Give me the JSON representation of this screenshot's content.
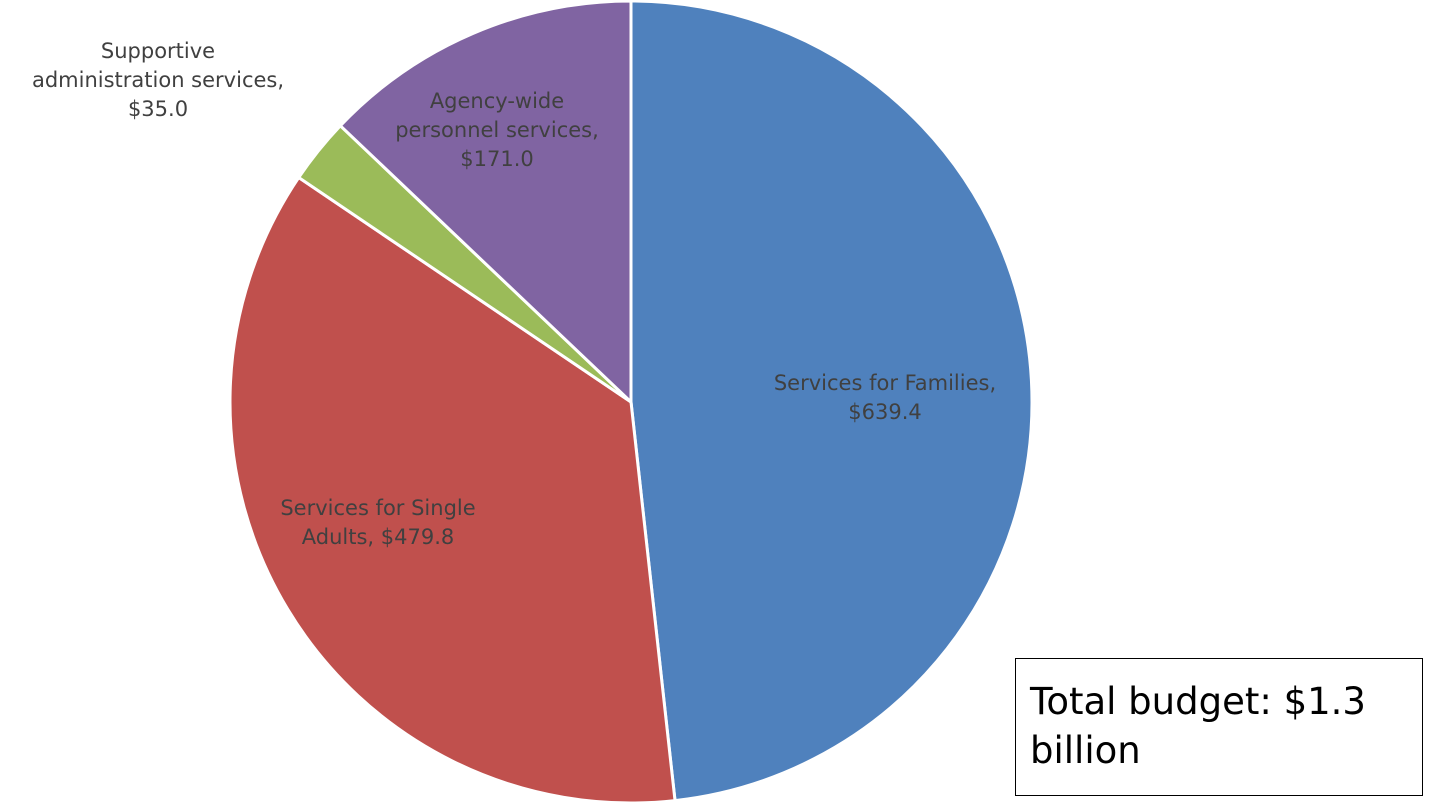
{
  "chart_data": {
    "type": "pie",
    "title": "",
    "unit": "$",
    "slices": [
      {
        "label": "Services for Families",
        "value": 639.4,
        "value_label": "$639.4",
        "color": "#4F81BD"
      },
      {
        "label": "Services for Single Adults",
        "value": 479.8,
        "value_label": "$479.8",
        "color": "#C0504D"
      },
      {
        "label": "Supportive administration services",
        "value": 35.0,
        "value_label": "$35.0",
        "color": "#9BBB59"
      },
      {
        "label": "Agency-wide personnel services",
        "value": 171.0,
        "value_label": "$171.0",
        "color": "#8064A2"
      }
    ],
    "label_lines": [
      [
        "Services for Families,",
        "$639.4"
      ],
      [
        "Services for Single",
        "Adults,  $479.8"
      ],
      [
        "Supportive",
        "administration services,",
        "$35.0"
      ],
      [
        "Agency-wide",
        "personnel services,",
        "$171.0"
      ]
    ],
    "start_angle": "12 o'clock",
    "direction": "clockwise",
    "legend": "none"
  },
  "annotation": {
    "total_line1": "Total budget: $1.3",
    "total_line2": "billion"
  }
}
